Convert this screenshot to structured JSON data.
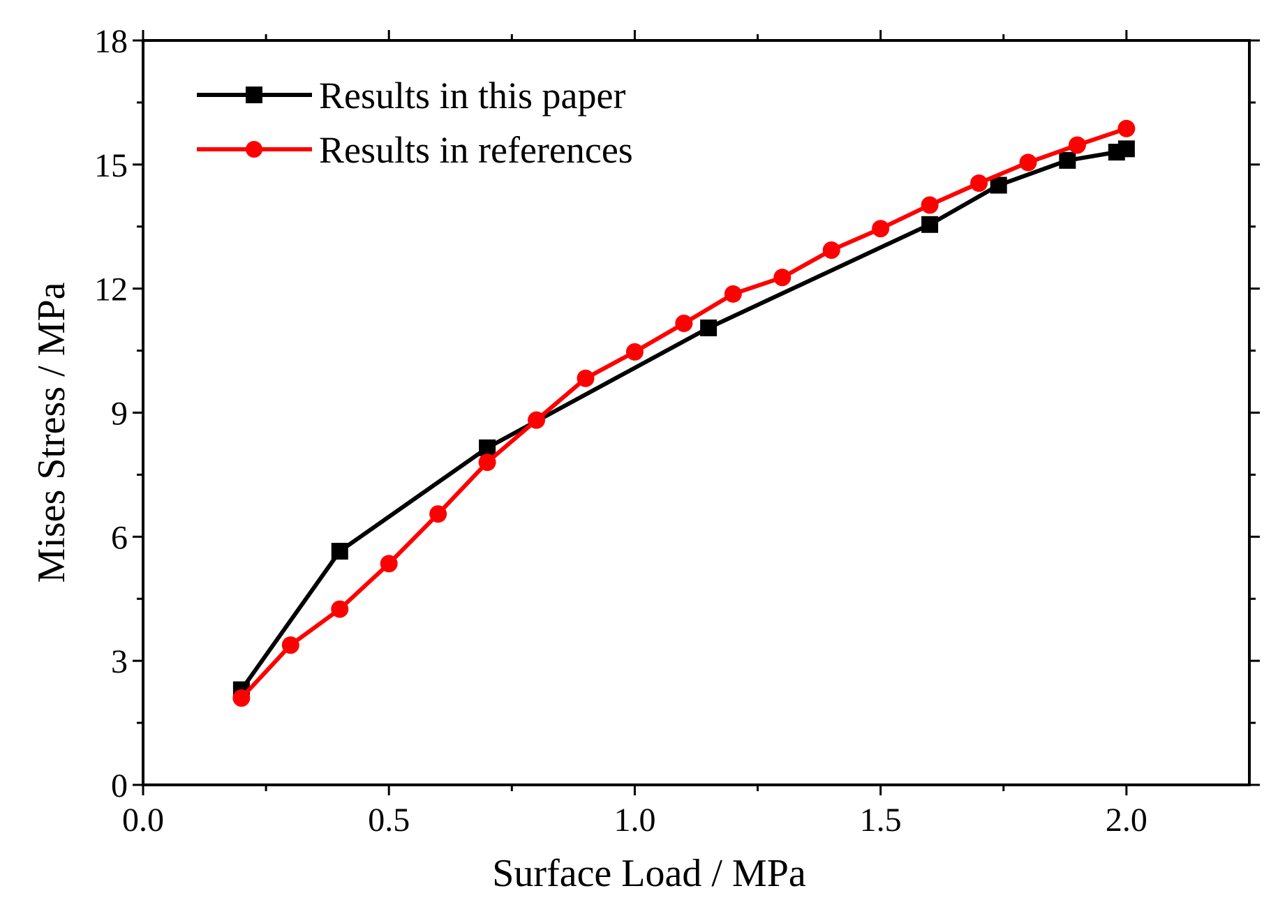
{
  "chart_data": {
    "type": "line",
    "title": "",
    "xlabel": "Surface Load / MPa",
    "ylabel": "Mises Stress / MPa",
    "xlim": [
      0.0,
      2.25
    ],
    "ylim": [
      0,
      18
    ],
    "xticks": [
      0.0,
      0.5,
      1.0,
      1.5,
      2.0
    ],
    "xtick_labels": [
      "0.0",
      "0.5",
      "1.0",
      "1.5",
      "2.0"
    ],
    "xminor_ticks": [
      0.25,
      0.75,
      1.25,
      1.75
    ],
    "yticks": [
      0,
      3,
      6,
      9,
      12,
      15,
      18
    ],
    "ytick_labels": [
      "0",
      "3",
      "6",
      "9",
      "12",
      "15",
      "18"
    ],
    "yminor_ticks": [
      1.5,
      4.5,
      7.5,
      10.5,
      13.5,
      16.5
    ],
    "grid": false,
    "legend_position": "top-left",
    "series": [
      {
        "name": "Results in this paper",
        "color": "#000000",
        "marker": "square",
        "x": [
          0.2,
          0.4,
          0.7,
          1.15,
          1.6,
          1.74,
          1.88,
          1.98,
          2.0
        ],
        "y": [
          2.3,
          5.65,
          8.15,
          11.05,
          13.55,
          14.5,
          15.1,
          15.3,
          15.38
        ]
      },
      {
        "name": "Results in references",
        "color": "#ff0000",
        "marker": "circle",
        "x": [
          0.2,
          0.3,
          0.4,
          0.5,
          0.6,
          0.7,
          0.8,
          0.9,
          1.0,
          1.1,
          1.2,
          1.3,
          1.4,
          1.5,
          1.6,
          1.7,
          1.8,
          1.9,
          2.0
        ],
        "y": [
          2.1,
          3.38,
          4.25,
          5.35,
          6.55,
          7.8,
          8.82,
          9.83,
          10.47,
          11.16,
          11.87,
          12.27,
          12.93,
          13.45,
          14.02,
          14.55,
          15.05,
          15.47,
          15.87
        ]
      }
    ]
  }
}
